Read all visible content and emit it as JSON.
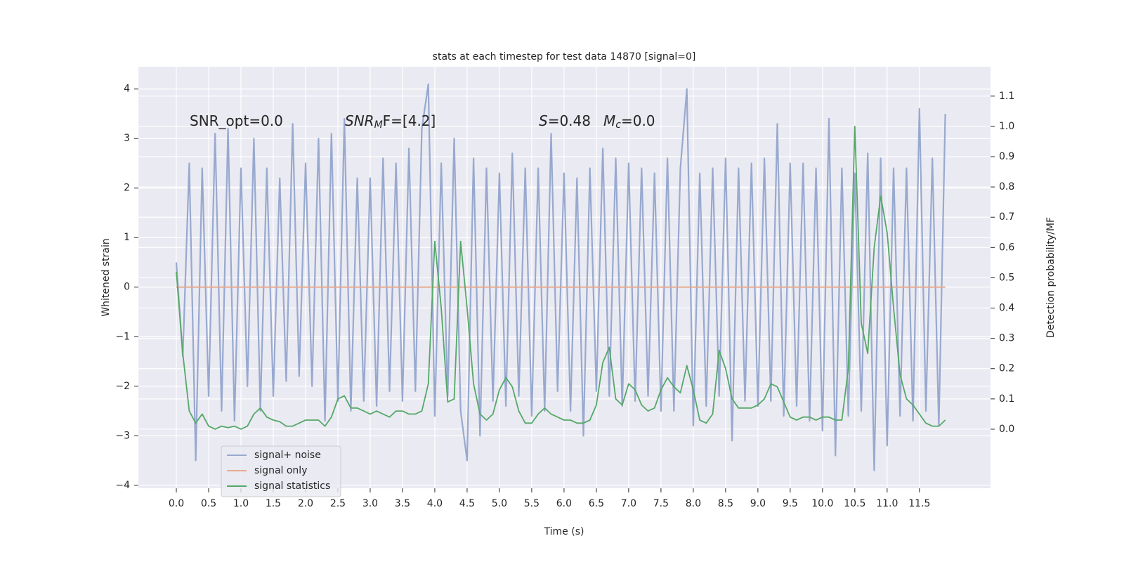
{
  "chart_data": {
    "type": "line",
    "title": "stats at each timestep for test data 14870 [signal=0]",
    "x_label": "Time (s)",
    "y_label": "Whitened strain",
    "y2_label": "Detection probability/MF",
    "annotations": [
      {
        "text": "SNR_opt=0.0"
      },
      {
        "text": "SNR",
        "sub": "M",
        "tail": "F=[4.2]"
      },
      {
        "text": "S",
        "tail": "=0.48"
      },
      {
        "text": "M",
        "sub": "c",
        "tail": "=0.0"
      }
    ],
    "x": [
      0.0,
      0.1,
      0.2,
      0.3,
      0.4,
      0.5,
      0.6,
      0.7,
      0.8,
      0.9,
      1.0,
      1.1,
      1.2,
      1.3,
      1.4,
      1.5,
      1.6,
      1.7,
      1.8,
      1.9,
      2.0,
      2.1,
      2.2,
      2.3,
      2.4,
      2.5,
      2.6,
      2.7,
      2.8,
      2.9,
      3.0,
      3.1,
      3.2,
      3.3,
      3.4,
      3.5,
      3.6,
      3.7,
      3.8,
      3.9,
      4.0,
      4.1,
      4.2,
      4.3,
      4.4,
      4.5,
      4.6,
      4.7,
      4.8,
      4.9,
      5.0,
      5.1,
      5.2,
      5.3,
      5.4,
      5.5,
      5.6,
      5.7,
      5.8,
      5.9,
      6.0,
      6.1,
      6.2,
      6.3,
      6.4,
      6.5,
      6.6,
      6.7,
      6.8,
      6.9,
      7.0,
      7.1,
      7.2,
      7.3,
      7.4,
      7.5,
      7.6,
      7.7,
      7.8,
      7.9,
      8.0,
      8.1,
      8.2,
      8.3,
      8.4,
      8.5,
      8.6,
      8.7,
      8.8,
      8.9,
      9.0,
      9.1,
      9.2,
      9.3,
      9.4,
      9.5,
      9.6,
      9.7,
      9.8,
      9.9,
      10.0,
      10.1,
      10.2,
      10.3,
      10.4,
      10.5,
      10.6,
      10.7,
      10.8,
      10.9,
      11.0,
      11.1,
      11.2,
      11.3,
      11.4,
      11.5,
      11.6,
      11.7,
      11.8,
      11.9
    ],
    "series": [
      {
        "name": "signal+ noise",
        "color": "#98a9cf",
        "axis": "y",
        "values": [
          0.5,
          -1.4,
          2.5,
          -3.5,
          2.4,
          -2.2,
          3.1,
          -2.5,
          3.2,
          -2.7,
          2.4,
          -2.0,
          3.0,
          -2.5,
          2.4,
          -2.2,
          2.2,
          -1.9,
          3.3,
          -1.8,
          2.5,
          -2.0,
          3.0,
          -2.7,
          3.1,
          -2.3,
          3.4,
          -2.5,
          2.2,
          -2.3,
          2.2,
          -2.4,
          2.6,
          -2.1,
          2.5,
          -2.3,
          2.8,
          -2.1,
          3.2,
          4.1,
          -2.6,
          2.5,
          -2.2,
          3.0,
          -2.5,
          -3.5,
          2.6,
          -3.0,
          2.4,
          -2.3,
          2.3,
          -2.4,
          2.7,
          -2.2,
          2.4,
          -2.6,
          2.4,
          -2.5,
          3.1,
          -2.1,
          2.3,
          -2.5,
          2.2,
          -3.0,
          2.4,
          -2.1,
          2.8,
          -2.2,
          2.6,
          -2.4,
          2.5,
          -2.3,
          2.4,
          -2.2,
          2.3,
          -2.5,
          2.6,
          -2.5,
          2.4,
          4.0,
          -2.8,
          2.3,
          -2.4,
          2.4,
          -2.2,
          2.6,
          -3.1,
          2.4,
          -2.3,
          2.5,
          -2.4,
          2.6,
          -2.3,
          3.3,
          -2.6,
          2.5,
          -2.4,
          2.5,
          -2.7,
          2.4,
          -2.9,
          3.4,
          -3.4,
          2.4,
          -2.6,
          2.3,
          -2.5,
          2.7,
          -3.7,
          2.6,
          -3.2,
          2.4,
          -2.6,
          2.4,
          -2.7,
          3.6,
          -2.5,
          2.6,
          -2.8,
          3.5
        ]
      },
      {
        "name": "signal only",
        "color": "#e8a98a",
        "axis": "y",
        "values": [
          0,
          0,
          0,
          0,
          0,
          0,
          0,
          0,
          0,
          0,
          0,
          0,
          0,
          0,
          0,
          0,
          0,
          0,
          0,
          0,
          0,
          0,
          0,
          0,
          0,
          0,
          0,
          0,
          0,
          0,
          0,
          0,
          0,
          0,
          0,
          0,
          0,
          0,
          0,
          0,
          0,
          0,
          0,
          0,
          0,
          0,
          0,
          0,
          0,
          0,
          0,
          0,
          0,
          0,
          0,
          0,
          0,
          0,
          0,
          0,
          0,
          0,
          0,
          0,
          0,
          0,
          0,
          0,
          0,
          0,
          0,
          0,
          0,
          0,
          0,
          0,
          0,
          0,
          0,
          0,
          0,
          0,
          0,
          0,
          0,
          0,
          0,
          0,
          0,
          0,
          0,
          0,
          0,
          0,
          0,
          0,
          0,
          0,
          0,
          0,
          0,
          0,
          0,
          0,
          0,
          0,
          0,
          0,
          0,
          0,
          0,
          0,
          0,
          0,
          0,
          0,
          0,
          0,
          0,
          0
        ]
      },
      {
        "name": "signal statistics",
        "color": "#55a868",
        "axis": "y2",
        "values": [
          0.52,
          0.25,
          0.06,
          0.02,
          0.05,
          0.01,
          0.0,
          0.01,
          0.005,
          0.01,
          0.0,
          0.01,
          0.05,
          0.07,
          0.04,
          0.03,
          0.025,
          0.01,
          0.01,
          0.02,
          0.03,
          0.03,
          0.03,
          0.01,
          0.04,
          0.1,
          0.11,
          0.07,
          0.07,
          0.06,
          0.05,
          0.06,
          0.05,
          0.04,
          0.06,
          0.06,
          0.05,
          0.05,
          0.06,
          0.15,
          0.62,
          0.4,
          0.09,
          0.1,
          0.62,
          0.4,
          0.15,
          0.05,
          0.03,
          0.05,
          0.13,
          0.17,
          0.14,
          0.06,
          0.02,
          0.02,
          0.05,
          0.07,
          0.05,
          0.04,
          0.03,
          0.03,
          0.02,
          0.02,
          0.03,
          0.08,
          0.22,
          0.27,
          0.1,
          0.08,
          0.15,
          0.13,
          0.08,
          0.06,
          0.07,
          0.13,
          0.17,
          0.14,
          0.12,
          0.21,
          0.13,
          0.03,
          0.02,
          0.05,
          0.26,
          0.2,
          0.1,
          0.07,
          0.07,
          0.07,
          0.08,
          0.1,
          0.15,
          0.14,
          0.09,
          0.04,
          0.03,
          0.04,
          0.04,
          0.03,
          0.04,
          0.04,
          0.03,
          0.03,
          0.2,
          1.0,
          0.35,
          0.25,
          0.6,
          0.77,
          0.65,
          0.4,
          0.18,
          0.1,
          0.08,
          0.05,
          0.02,
          0.01,
          0.01,
          0.03
        ]
      }
    ],
    "xlim": [
      -0.587,
      12.6
    ],
    "xticks": [
      {
        "value": 0,
        "label": "0.0"
      },
      {
        "value": 0.5,
        "label": "0.5"
      },
      {
        "value": 1,
        "label": "1.0"
      },
      {
        "value": 1.5,
        "label": "1.5"
      },
      {
        "value": 2,
        "label": "2.0"
      },
      {
        "value": 2.5,
        "label": "2.5"
      },
      {
        "value": 3,
        "label": "3.0"
      },
      {
        "value": 3.5,
        "label": "3.5"
      },
      {
        "value": 4,
        "label": "4.0"
      },
      {
        "value": 4.5,
        "label": "4.5"
      },
      {
        "value": 5,
        "label": "5.0"
      },
      {
        "value": 5.5,
        "label": "5.5"
      },
      {
        "value": 6,
        "label": "6.0"
      },
      {
        "value": 6.5,
        "label": "6.5"
      },
      {
        "value": 7,
        "label": "7.0"
      },
      {
        "value": 7.5,
        "label": "7.5"
      },
      {
        "value": 8,
        "label": "8.0"
      },
      {
        "value": 8.5,
        "label": "8.5"
      },
      {
        "value": 9,
        "label": "9.0"
      },
      {
        "value": 9.5,
        "label": "9.5"
      },
      {
        "value": 10,
        "label": "10.0"
      },
      {
        "value": 10.5,
        "label": "10.5"
      },
      {
        "value": 11,
        "label": "11.0"
      },
      {
        "value": 11.5,
        "label": "11.5"
      }
    ],
    "ylim": [
      -4.06,
      4.45
    ],
    "yticks": [
      {
        "value": -4,
        "label": "−4"
      },
      {
        "value": -3,
        "label": "−3"
      },
      {
        "value": -2,
        "label": "−2"
      },
      {
        "value": -1,
        "label": "−1"
      },
      0,
      1,
      2,
      3,
      4
    ],
    "y2lim": [
      -0.195,
      1.197
    ],
    "y2ticks": [
      {
        "value": 0,
        "label": "0.0"
      },
      {
        "value": 0.1,
        "label": "0.1"
      },
      {
        "value": 0.2,
        "label": "0.2"
      },
      {
        "value": 0.3,
        "label": "0.3"
      },
      {
        "value": 0.4,
        "label": "0.4"
      },
      {
        "value": 0.5,
        "label": "0.5"
      },
      {
        "value": 0.6,
        "label": "0.6"
      },
      {
        "value": 0.7,
        "label": "0.7"
      },
      {
        "value": 0.8,
        "label": "0.8"
      },
      {
        "value": 0.9,
        "label": "0.9"
      },
      {
        "value": 1,
        "label": "1.0"
      },
      {
        "value": 1.1,
        "label": "1.1"
      }
    ],
    "grid": true,
    "legend": "lower left"
  }
}
